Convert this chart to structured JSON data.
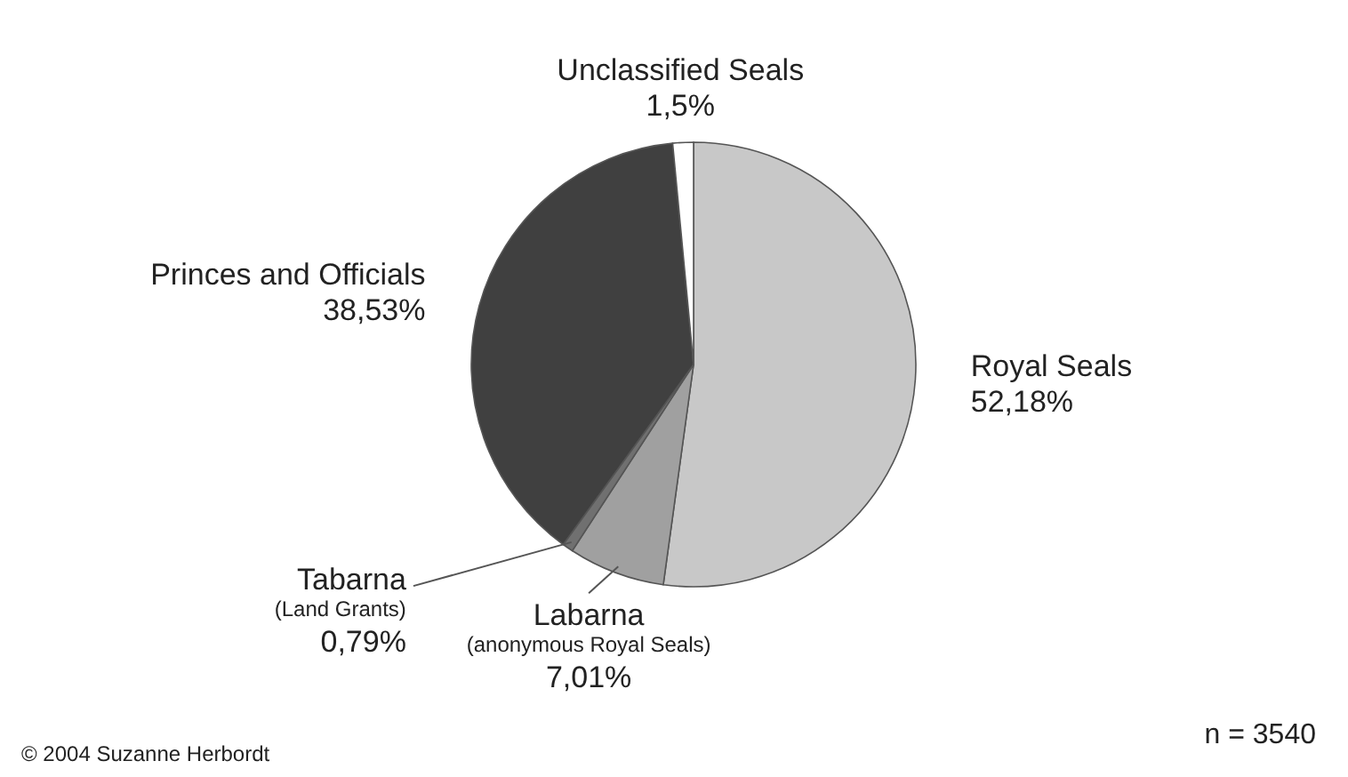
{
  "chart_data": {
    "type": "pie",
    "categories": [
      "Royal Seals",
      "Labarna (anonymous Royal Seals)",
      "Tabarna (Land Grants)",
      "Princes and Officials",
      "Unclassified Seals"
    ],
    "values": [
      52.18,
      7.01,
      0.79,
      38.53,
      1.5
    ],
    "colors": [
      "#c8c8c8",
      "#a0a0a0",
      "#707070",
      "#404040",
      "#ffffff"
    ],
    "value_labels": [
      "52,18%",
      "7,01%",
      "0,79%",
      "38,53%",
      "1,5%"
    ],
    "annotations": [
      "© 2004 Suzanne Herbordt",
      "n = 3540"
    ]
  }
}
